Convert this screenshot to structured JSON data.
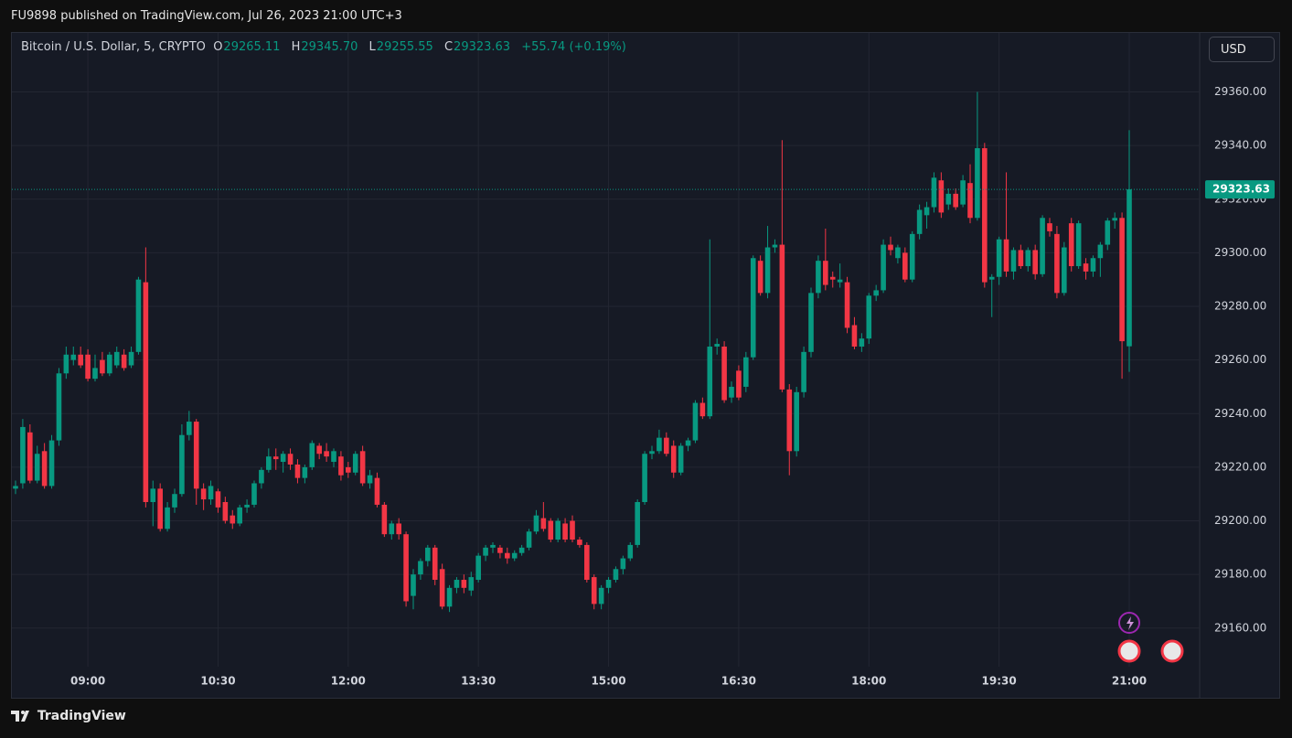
{
  "header": "FU9898 published on TradingView.com, Jul 26, 2023 21:00 UTC+3",
  "currency": "USD",
  "brand": "TradingView",
  "chart_data": {
    "type": "candlestick",
    "title": "Bitcoin / U.S. Dollar, 5, CRYPTO",
    "legend_keys": [
      "O",
      "H",
      "L",
      "C"
    ],
    "legend_values": [
      "29265.11",
      "29345.70",
      "29255.55",
      "29323.63"
    ],
    "change_label": "+55.74 (+0.19%)",
    "up_color": "#089981",
    "down_color": "#f23645",
    "grid": true,
    "last_price_line": true,
    "ylim": [
      29134,
      29382
    ],
    "yticks": [
      {
        "value": 29160,
        "label": "29160.00"
      },
      {
        "value": 29180,
        "label": "29180.00"
      },
      {
        "value": 29200,
        "label": "29200.00"
      },
      {
        "value": 29220,
        "label": "29220.00"
      },
      {
        "value": 29240,
        "label": "29240.00"
      },
      {
        "value": 29260,
        "label": "29260.00"
      },
      {
        "value": 29280,
        "label": "29280.00"
      },
      {
        "value": 29300,
        "label": "29300.00"
      },
      {
        "value": 29320,
        "label": "29320.00"
      },
      {
        "value": 29340,
        "label": "29340.00"
      },
      {
        "value": 29360,
        "label": "29360.00"
      }
    ],
    "xticks": [
      "09:00",
      "10:30",
      "12:00",
      "13:30",
      "15:00",
      "16:30",
      "18:00",
      "19:30",
      "21:00"
    ],
    "x": [
      "08:10",
      "08:15",
      "08:20",
      "08:25",
      "08:30",
      "08:35",
      "08:40",
      "08:45",
      "08:50",
      "08:55",
      "09:00",
      "09:05",
      "09:10",
      "09:15",
      "09:20",
      "09:25",
      "09:30",
      "09:35",
      "09:40",
      "09:45",
      "09:50",
      "09:55",
      "10:00",
      "10:05",
      "10:10",
      "10:15",
      "10:20",
      "10:25",
      "10:30",
      "10:35",
      "10:40",
      "10:45",
      "10:50",
      "10:55",
      "11:00",
      "11:05",
      "11:10",
      "11:15",
      "11:20",
      "11:25",
      "11:30",
      "11:35",
      "11:40",
      "11:45",
      "11:50",
      "11:55",
      "12:00",
      "12:05",
      "12:10",
      "12:15",
      "12:20",
      "12:25",
      "12:30",
      "12:35",
      "12:40",
      "12:45",
      "12:50",
      "12:55",
      "13:00",
      "13:05",
      "13:10",
      "13:15",
      "13:20",
      "13:25",
      "13:30",
      "13:35",
      "13:40",
      "13:45",
      "13:50",
      "13:55",
      "14:00",
      "14:05",
      "14:10",
      "14:15",
      "14:20",
      "14:25",
      "14:30",
      "14:35",
      "14:40",
      "14:45",
      "14:50",
      "14:55",
      "15:00",
      "15:05",
      "15:10",
      "15:15",
      "15:20",
      "15:25",
      "15:30",
      "15:35",
      "15:40",
      "15:45",
      "15:50",
      "15:55",
      "16:00",
      "16:05",
      "16:10",
      "16:15",
      "16:20",
      "16:25",
      "16:30",
      "16:35",
      "16:40",
      "16:45",
      "16:50",
      "16:55",
      "17:00",
      "17:05",
      "17:10",
      "17:15",
      "17:20",
      "17:25",
      "17:30",
      "17:35",
      "17:40",
      "17:45",
      "17:50",
      "17:55",
      "18:00",
      "18:05",
      "18:10",
      "18:15",
      "18:20",
      "18:25",
      "18:30",
      "18:35",
      "18:40",
      "18:45",
      "18:50",
      "18:55",
      "19:00",
      "19:05",
      "19:10",
      "19:15",
      "19:20",
      "19:25",
      "19:30",
      "19:35",
      "19:40",
      "19:45",
      "19:50",
      "19:55",
      "20:00",
      "20:05",
      "20:10",
      "20:15",
      "20:20",
      "20:25",
      "20:30",
      "20:35",
      "20:40",
      "20:45",
      "20:50",
      "20:55",
      "21:00"
    ],
    "ohlc": [
      [
        29212,
        29215,
        29210,
        29213
      ],
      [
        29214,
        29238,
        29212,
        29235
      ],
      [
        29233,
        29236,
        29214,
        29215
      ],
      [
        29215,
        29228,
        29214,
        29225
      ],
      [
        29226,
        29229,
        29212,
        29213
      ],
      [
        29213,
        29232,
        29212,
        29230
      ],
      [
        29230,
        29257,
        29228,
        29255
      ],
      [
        29255,
        29265,
        29253,
        29262
      ],
      [
        29260,
        29265,
        29258,
        29262
      ],
      [
        29262,
        29265,
        29257,
        29258
      ],
      [
        29262,
        29264,
        29252,
        29253
      ],
      [
        29253,
        29262,
        29252,
        29257
      ],
      [
        29260,
        29263,
        29254,
        29255
      ],
      [
        29255,
        29263,
        29254,
        29262
      ],
      [
        29258,
        29265,
        29257,
        29263
      ],
      [
        29262,
        29264,
        29256,
        29257
      ],
      [
        29258,
        29265,
        29257,
        29263
      ],
      [
        29263,
        29291,
        29262,
        29290
      ],
      [
        29289,
        29302,
        29205,
        29207
      ],
      [
        29207,
        29215,
        29198,
        29212
      ],
      [
        29212,
        29214,
        29196,
        29197
      ],
      [
        29197,
        29207,
        29196,
        29205
      ],
      [
        29205,
        29212,
        29203,
        29210
      ],
      [
        29210,
        29236,
        29209,
        29232
      ],
      [
        29232,
        29241,
        29230,
        29237
      ],
      [
        29237,
        29238,
        29206,
        29212
      ],
      [
        29212,
        29214,
        29204,
        29208
      ],
      [
        29208,
        29215,
        29206,
        29213
      ],
      [
        29211,
        29212,
        29203,
        29205
      ],
      [
        29207,
        29209,
        29199,
        29200
      ],
      [
        29202,
        29204,
        29197,
        29199
      ],
      [
        29199,
        29206,
        29198,
        29205
      ],
      [
        29205,
        29208,
        29203,
        29206
      ],
      [
        29206,
        29215,
        29205,
        29214
      ],
      [
        29214,
        29220,
        29212,
        29219
      ],
      [
        29219,
        29227,
        29218,
        29224
      ],
      [
        29224,
        29227,
        29219,
        29223
      ],
      [
        29222,
        29226,
        29218,
        29225
      ],
      [
        29225,
        29227,
        29219,
        29221
      ],
      [
        29221,
        29223,
        29214,
        29216
      ],
      [
        29216,
        29221,
        29214,
        29220
      ],
      [
        29220,
        29230,
        29219,
        29229
      ],
      [
        29228,
        29229,
        29223,
        29225
      ],
      [
        29226,
        29229,
        29222,
        29224
      ],
      [
        29222,
        29227,
        29220,
        29226
      ],
      [
        29224,
        29226,
        29215,
        29217
      ],
      [
        29220,
        29222,
        29216,
        29218
      ],
      [
        29218,
        29226,
        29217,
        29225
      ],
      [
        29226,
        29228,
        29213,
        29214
      ],
      [
        29214,
        29219,
        29212,
        29217
      ],
      [
        29216,
        29218,
        29205,
        29206
      ],
      [
        29206,
        29207,
        29194,
        29195
      ],
      [
        29195,
        29200,
        29193,
        29199
      ],
      [
        29199,
        29201,
        29193,
        29195
      ],
      [
        29195,
        29196,
        29168,
        29170
      ],
      [
        29172,
        29182,
        29167,
        29180
      ],
      [
        29180,
        29186,
        29178,
        29185
      ],
      [
        29185,
        29191,
        29183,
        29190
      ],
      [
        29190,
        29191,
        29176,
        29178
      ],
      [
        29182,
        29184,
        29167,
        29168
      ],
      [
        29168,
        29176,
        29166,
        29175
      ],
      [
        29175,
        29179,
        29173,
        29178
      ],
      [
        29178,
        29180,
        29173,
        29175
      ],
      [
        29174,
        29181,
        29172,
        29179
      ],
      [
        29178,
        29188,
        29177,
        29187
      ],
      [
        29187,
        29191,
        29185,
        29190
      ],
      [
        29190,
        29192,
        29188,
        29191
      ],
      [
        29190,
        29191,
        29186,
        29188
      ],
      [
        29188,
        29190,
        29184,
        29186
      ],
      [
        29186,
        29189,
        29185,
        29188
      ],
      [
        29188,
        29191,
        29187,
        29190
      ],
      [
        29190,
        29197,
        29189,
        29196
      ],
      [
        29196,
        29204,
        29195,
        29202
      ],
      [
        29201,
        29207,
        29196,
        29197
      ],
      [
        29200,
        29201,
        29192,
        29193
      ],
      [
        29193,
        29201,
        29192,
        29200
      ],
      [
        29199,
        29201,
        29192,
        29193
      ],
      [
        29200,
        29202,
        29192,
        29193
      ],
      [
        29193,
        29194,
        29190,
        29191
      ],
      [
        29191,
        29192,
        29177,
        29178
      ],
      [
        29179,
        29180,
        29167,
        29169
      ],
      [
        29169,
        29176,
        29167,
        29175
      ],
      [
        29175,
        29179,
        29173,
        29178
      ],
      [
        29178,
        29183,
        29177,
        29182
      ],
      [
        29182,
        29187,
        29180,
        29186
      ],
      [
        29186,
        29192,
        29185,
        29191
      ],
      [
        29191,
        29208,
        29190,
        29207
      ],
      [
        29207,
        29226,
        29206,
        29225
      ],
      [
        29225,
        29228,
        29223,
        29226
      ],
      [
        29226,
        29234,
        29225,
        29231
      ],
      [
        29231,
        29233,
        29224,
        29225
      ],
      [
        29228,
        29230,
        29216,
        29218
      ],
      [
        29218,
        29229,
        29217,
        29228
      ],
      [
        29228,
        29231,
        29226,
        29230
      ],
      [
        29230,
        29245,
        29229,
        29244
      ],
      [
        29244,
        29246,
        29238,
        29239
      ],
      [
        29239,
        29305,
        29238,
        29265
      ],
      [
        29265,
        29268,
        29262,
        29266
      ],
      [
        29265,
        29267,
        29244,
        29245
      ],
      [
        29246,
        29252,
        29244,
        29250
      ],
      [
        29256,
        29258,
        29245,
        29246
      ],
      [
        29250,
        29263,
        29248,
        29261
      ],
      [
        29261,
        29299,
        29260,
        29298
      ],
      [
        29297,
        29299,
        29284,
        29285
      ],
      [
        29285,
        29310,
        29283,
        29302
      ],
      [
        29302,
        29305,
        29300,
        29303
      ],
      [
        29303,
        29342,
        29248,
        29249
      ],
      [
        29249,
        29251,
        29217,
        29226
      ],
      [
        29226,
        29250,
        29224,
        29248
      ],
      [
        29248,
        29265,
        29246,
        29263
      ],
      [
        29263,
        29287,
        29261,
        29285
      ],
      [
        29285,
        29299,
        29283,
        29297
      ],
      [
        29297,
        29309,
        29286,
        29288
      ],
      [
        29291,
        29293,
        29287,
        29290
      ],
      [
        29289,
        29296,
        29287,
        29290
      ],
      [
        29289,
        29291,
        29270,
        29272
      ],
      [
        29273,
        29276,
        29264,
        29265
      ],
      [
        29265,
        29270,
        29263,
        29268
      ],
      [
        29268,
        29285,
        29266,
        29284
      ],
      [
        29284,
        29288,
        29282,
        29286
      ],
      [
        29286,
        29305,
        29285,
        29303
      ],
      [
        29303,
        29306,
        29299,
        29301
      ],
      [
        29298,
        29303,
        29296,
        29302
      ],
      [
        29300,
        29302,
        29289,
        29290
      ],
      [
        29290,
        29308,
        29289,
        29307
      ],
      [
        29307,
        29318,
        29305,
        29316
      ],
      [
        29314,
        29319,
        29309,
        29317
      ],
      [
        29317,
        29330,
        29315,
        29328
      ],
      [
        29327,
        29330,
        29313,
        29315
      ],
      [
        29318,
        29324,
        29316,
        29322
      ],
      [
        29322,
        29324,
        29316,
        29317
      ],
      [
        29318,
        29329,
        29317,
        29327
      ],
      [
        29326,
        29333,
        29311,
        29313
      ],
      [
        29313,
        29360,
        29312,
        29339
      ],
      [
        29339,
        29341,
        29287,
        29289
      ],
      [
        29290,
        29292,
        29276,
        29291
      ],
      [
        29291,
        29306,
        29288,
        29305
      ],
      [
        29305,
        29330,
        29291,
        29293
      ],
      [
        29293,
        29302,
        29290,
        29301
      ],
      [
        29301,
        29303,
        29294,
        29295
      ],
      [
        29295,
        29302,
        29293,
        29301
      ],
      [
        29301,
        29303,
        29290,
        29292
      ],
      [
        29292,
        29314,
        29291,
        29313
      ],
      [
        29311,
        29313,
        29306,
        29308
      ],
      [
        29307,
        29310,
        29283,
        29285
      ],
      [
        29285,
        29304,
        29284,
        29302
      ],
      [
        29311,
        29313,
        29293,
        29295
      ],
      [
        29295,
        29312,
        29294,
        29311
      ],
      [
        29296,
        29298,
        29290,
        29293
      ],
      [
        29293,
        29299,
        29291,
        29298
      ],
      [
        29298,
        29304,
        29291,
        29303
      ],
      [
        29303,
        29313,
        29301,
        29312
      ],
      [
        29312,
        29315,
        29309,
        29313
      ],
      [
        29313,
        29315,
        29253,
        29267
      ],
      [
        29265.11,
        29345.7,
        29255.55,
        29323.63
      ]
    ]
  }
}
